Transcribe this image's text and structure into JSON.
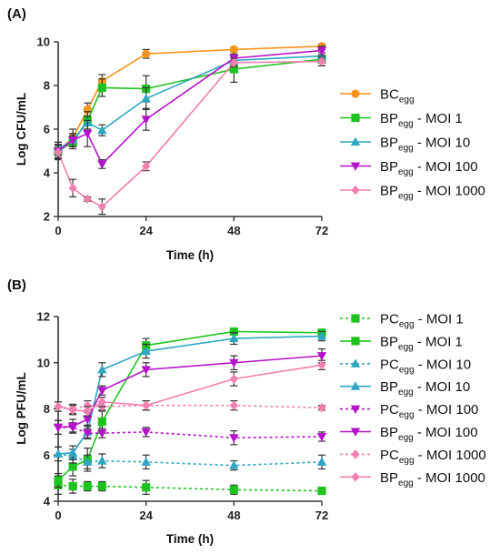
{
  "chart_data": [
    {
      "type": "line",
      "panel_label": "(A)",
      "xlabel": "Time (h)",
      "ylabel": "Log CFU/mL",
      "xlim": [
        0,
        72
      ],
      "ylim": [
        2,
        10
      ],
      "xticks": [
        0,
        24,
        48,
        72
      ],
      "yticks": [
        2,
        4,
        6,
        8,
        10
      ],
      "tick_labels_x": [
        "0",
        "24",
        "48",
        "72"
      ],
      "tick_labels_y": [
        "2",
        "4",
        "6",
        "8",
        "10"
      ],
      "legend_position": "right",
      "series": [
        {
          "legend_main": "BC",
          "legend_sub": "egg",
          "legend_suffix": "",
          "color": "#f7941d",
          "marker": "circle",
          "dashed": false,
          "points": [
            {
              "x": 0,
              "y": 5.0,
              "err": 0.4
            },
            {
              "x": 4,
              "y": 5.6,
              "err": 0.4
            },
            {
              "x": 8,
              "y": 6.9,
              "err": 0.3
            },
            {
              "x": 12,
              "y": 8.2,
              "err": 0.3
            },
            {
              "x": 24,
              "y": 9.45,
              "err": 0.2
            },
            {
              "x": 48,
              "y": 9.65,
              "err": 0.1
            },
            {
              "x": 72,
              "y": 9.8,
              "err": 0.1
            }
          ]
        },
        {
          "legend_main": "BP",
          "legend_sub": "egg",
          "legend_suffix": " - MOI 1",
          "color": "#1ec31e",
          "marker": "square",
          "dashed": false,
          "points": [
            {
              "x": 0,
              "y": 5.0,
              "err": 0.3
            },
            {
              "x": 4,
              "y": 5.4,
              "err": 0.3
            },
            {
              "x": 8,
              "y": 6.4,
              "err": 0.4
            },
            {
              "x": 12,
              "y": 7.9,
              "err": 0.4
            },
            {
              "x": 24,
              "y": 7.85,
              "err": 0.6
            },
            {
              "x": 48,
              "y": 8.75,
              "err": 0.6
            },
            {
              "x": 72,
              "y": 9.2,
              "err": 0.3
            }
          ]
        },
        {
          "legend_main": "BP",
          "legend_sub": "egg",
          "legend_suffix": " - MOI 10",
          "color": "#2fa6c2",
          "marker": "triangle-up",
          "dashed": false,
          "points": [
            {
              "x": 0,
              "y": 5.1,
              "err": 0.3
            },
            {
              "x": 4,
              "y": 5.5,
              "err": 0.3
            },
            {
              "x": 8,
              "y": 6.3,
              "err": 0.3
            },
            {
              "x": 12,
              "y": 5.95,
              "err": 0.25
            },
            {
              "x": 24,
              "y": 7.4,
              "err": 0.5
            },
            {
              "x": 48,
              "y": 9.15,
              "err": 0.2
            },
            {
              "x": 72,
              "y": 9.35,
              "err": 0.3
            }
          ]
        },
        {
          "legend_main": "BP",
          "legend_sub": "egg",
          "legend_suffix": " - MOI 100",
          "color": "#b513c9",
          "marker": "triangle-down",
          "dashed": false,
          "points": [
            {
              "x": 0,
              "y": 5.0,
              "err": 0.3
            },
            {
              "x": 4,
              "y": 5.5,
              "err": 0.3
            },
            {
              "x": 8,
              "y": 5.8,
              "err": 0.6
            },
            {
              "x": 12,
              "y": 4.4,
              "err": 0.2
            },
            {
              "x": 24,
              "y": 6.45,
              "err": 0.5
            },
            {
              "x": 48,
              "y": 9.25,
              "err": 0.2
            },
            {
              "x": 72,
              "y": 9.6,
              "err": 0.2
            }
          ]
        },
        {
          "legend_main": "BP",
          "legend_sub": "egg",
          "legend_suffix": " - MOI 1000",
          "color": "#f27fb0",
          "marker": "diamond",
          "dashed": false,
          "points": [
            {
              "x": 0,
              "y": 4.95,
              "err": 0.3
            },
            {
              "x": 4,
              "y": 3.3,
              "err": 0.4
            },
            {
              "x": 8,
              "y": 2.8,
              "err": 0.1
            },
            {
              "x": 12,
              "y": 2.45,
              "err": 0.35
            },
            {
              "x": 24,
              "y": 4.3,
              "err": 0.2
            },
            {
              "x": 48,
              "y": 9.05,
              "err": 0.2
            },
            {
              "x": 72,
              "y": 9.1,
              "err": 0.2
            }
          ]
        }
      ]
    },
    {
      "type": "line",
      "panel_label": "(B)",
      "xlabel": "Time (h)",
      "ylabel": "Log PFU/mL",
      "xlim": [
        0,
        72
      ],
      "ylim": [
        4,
        12
      ],
      "xticks": [
        0,
        24,
        48,
        72
      ],
      "yticks": [
        4,
        6,
        8,
        10,
        12
      ],
      "tick_labels_x": [
        "0",
        "24",
        "48",
        "72"
      ],
      "tick_labels_y": [
        "4",
        "6",
        "8",
        "10",
        "12"
      ],
      "legend_position": "right",
      "series": [
        {
          "legend_main": "PC",
          "legend_sub": "egg",
          "legend_suffix": " - MOI 1",
          "color": "#1ec31e",
          "marker": "square",
          "dashed": true,
          "points": [
            {
              "x": 0,
              "y": 4.7,
              "err": 0.4
            },
            {
              "x": 4,
              "y": 4.65,
              "err": 0.3
            },
            {
              "x": 8,
              "y": 4.65,
              "err": 0.2
            },
            {
              "x": 12,
              "y": 4.65,
              "err": 0.2
            },
            {
              "x": 24,
              "y": 4.6,
              "err": 0.3
            },
            {
              "x": 48,
              "y": 4.5,
              "err": 0.2
            },
            {
              "x": 72,
              "y": 4.45,
              "err": 0.1
            }
          ]
        },
        {
          "legend_main": "BP",
          "legend_sub": "egg",
          "legend_suffix": " - MOI 1",
          "color": "#1ec31e",
          "marker": "square",
          "dashed": false,
          "points": [
            {
              "x": 0,
              "y": 4.9,
              "err": 0.3
            },
            {
              "x": 4,
              "y": 5.5,
              "err": 0.4
            },
            {
              "x": 8,
              "y": 5.8,
              "err": 0.5
            },
            {
              "x": 12,
              "y": 7.45,
              "err": 0.5
            },
            {
              "x": 24,
              "y": 10.75,
              "err": 0.3
            },
            {
              "x": 48,
              "y": 11.35,
              "err": 0.15
            },
            {
              "x": 72,
              "y": 11.3,
              "err": 0.15
            }
          ]
        },
        {
          "legend_main": "PC",
          "legend_sub": "egg",
          "legend_suffix": " - MOI 10",
          "color": "#2fa6c2",
          "marker": "triangle-up",
          "dashed": true,
          "points": [
            {
              "x": 0,
              "y": 6.05,
              "err": 0.3
            },
            {
              "x": 4,
              "y": 5.95,
              "err": 0.3
            },
            {
              "x": 8,
              "y": 5.7,
              "err": 0.3
            },
            {
              "x": 12,
              "y": 5.75,
              "err": 0.3
            },
            {
              "x": 24,
              "y": 5.7,
              "err": 0.3
            },
            {
              "x": 48,
              "y": 5.55,
              "err": 0.2
            },
            {
              "x": 72,
              "y": 5.7,
              "err": 0.3
            }
          ]
        },
        {
          "legend_main": "BP",
          "legend_sub": "egg",
          "legend_suffix": " - MOI 10",
          "color": "#2fa6c2",
          "marker": "triangle-up",
          "dashed": false,
          "points": [
            {
              "x": 0,
              "y": 6.05,
              "err": 0.3
            },
            {
              "x": 4,
              "y": 6.1,
              "err": 0.3
            },
            {
              "x": 8,
              "y": 7.0,
              "err": 0.3
            },
            {
              "x": 12,
              "y": 9.7,
              "err": 0.3
            },
            {
              "x": 24,
              "y": 10.5,
              "err": 0.3
            },
            {
              "x": 48,
              "y": 11.05,
              "err": 0.25
            },
            {
              "x": 72,
              "y": 11.15,
              "err": 0.2
            }
          ]
        },
        {
          "legend_main": "PC",
          "legend_sub": "egg",
          "legend_suffix": " - MOI 100",
          "color": "#b513c9",
          "marker": "triangle-down",
          "dashed": true,
          "points": [
            {
              "x": 0,
              "y": 7.2,
              "err": 0.3
            },
            {
              "x": 4,
              "y": 7.2,
              "err": 0.2
            },
            {
              "x": 8,
              "y": 6.95,
              "err": 0.2
            },
            {
              "x": 12,
              "y": 6.95,
              "err": 0.2
            },
            {
              "x": 24,
              "y": 7.0,
              "err": 0.2
            },
            {
              "x": 48,
              "y": 6.75,
              "err": 0.3
            },
            {
              "x": 72,
              "y": 6.8,
              "err": 0.2
            }
          ]
        },
        {
          "legend_main": "BP",
          "legend_sub": "egg",
          "legend_suffix": " - MOI 100",
          "color": "#b513c9",
          "marker": "triangle-down",
          "dashed": false,
          "points": [
            {
              "x": 0,
              "y": 7.2,
              "err": 0.3
            },
            {
              "x": 4,
              "y": 7.25,
              "err": 0.3
            },
            {
              "x": 8,
              "y": 7.55,
              "err": 0.3
            },
            {
              "x": 12,
              "y": 8.8,
              "err": 0.2
            },
            {
              "x": 24,
              "y": 9.7,
              "err": 0.3
            },
            {
              "x": 48,
              "y": 10.0,
              "err": 0.3
            },
            {
              "x": 72,
              "y": 10.3,
              "err": 0.3
            }
          ]
        },
        {
          "legend_main": "PC",
          "legend_sub": "egg",
          "legend_suffix": " - MOI 1000",
          "color": "#f27fb0",
          "marker": "diamond",
          "dashed": true,
          "points": [
            {
              "x": 0,
              "y": 8.1,
              "err": 0.2
            },
            {
              "x": 4,
              "y": 8.0,
              "err": 0.2
            },
            {
              "x": 8,
              "y": 8.15,
              "err": 0.2
            },
            {
              "x": 12,
              "y": 8.1,
              "err": 0.2
            },
            {
              "x": 24,
              "y": 8.15,
              "err": 0.2
            },
            {
              "x": 48,
              "y": 8.15,
              "err": 0.2
            },
            {
              "x": 72,
              "y": 8.05,
              "err": 0.1
            }
          ]
        },
        {
          "legend_main": "BP",
          "legend_sub": "egg",
          "legend_suffix": " - MOI 1000",
          "color": "#f27fb0",
          "marker": "diamond",
          "dashed": false,
          "points": [
            {
              "x": 0,
              "y": 8.1,
              "err": 0.2
            },
            {
              "x": 4,
              "y": 7.95,
              "err": 0.2
            },
            {
              "x": 8,
              "y": 7.9,
              "err": 0.2
            },
            {
              "x": 12,
              "y": 8.3,
              "err": 0.2
            },
            {
              "x": 24,
              "y": 8.15,
              "err": 0.2
            },
            {
              "x": 48,
              "y": 9.3,
              "err": 0.3
            },
            {
              "x": 72,
              "y": 9.9,
              "err": 0.2
            }
          ]
        }
      ]
    }
  ]
}
